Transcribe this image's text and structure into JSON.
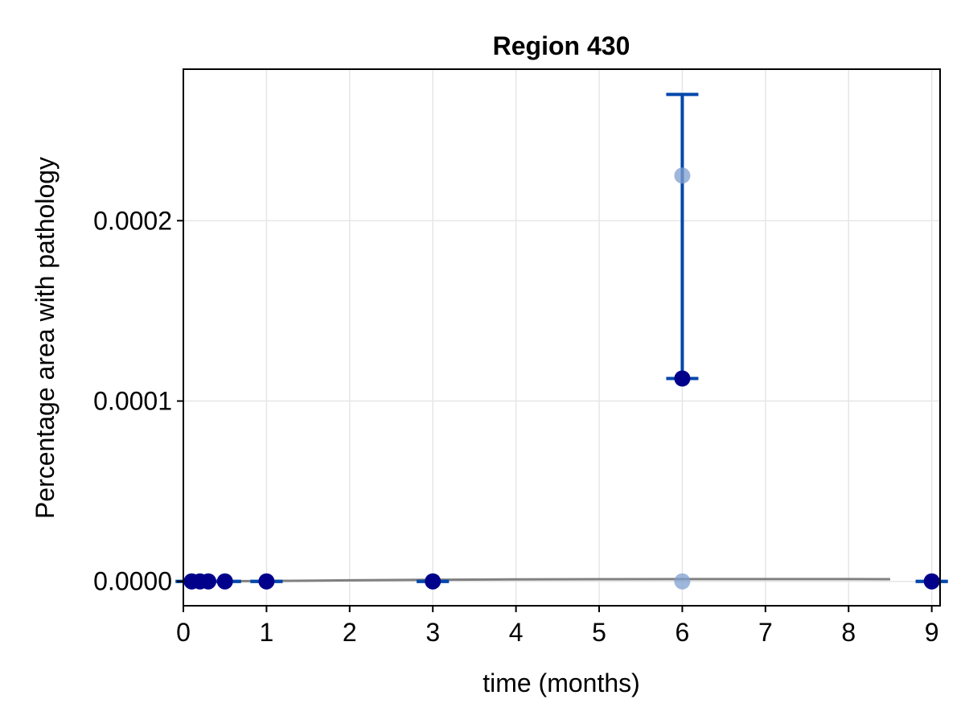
{
  "chart_data": {
    "type": "scatter",
    "title": "Region 430",
    "xlabel": "time (months)",
    "ylabel": "Percentage area with pathology",
    "xlim": [
      0,
      9.1
    ],
    "ylim": [
      -1.35e-05,
      0.000284
    ],
    "x_ticks": [
      0,
      1,
      2,
      3,
      4,
      5,
      6,
      7,
      8,
      9
    ],
    "x_tick_labels": [
      "0",
      "1",
      "2",
      "3",
      "4",
      "5",
      "6",
      "7",
      "8",
      "9"
    ],
    "y_ticks": [
      0,
      0.0001,
      0.0002
    ],
    "y_tick_labels": [
      "0.0000",
      "0.0001",
      "0.0002"
    ],
    "grid": true,
    "legend": "none",
    "colors": {
      "mean_points": "#00008b",
      "individual_points": "#7f9fcf",
      "error_bars": "#0047ab",
      "model_line": "#808080",
      "grid": "#e6e6e6",
      "frame": "#000000"
    },
    "series": [
      {
        "kind": "model_line",
        "x": [
          0.1,
          1,
          2,
          3,
          4,
          5,
          6,
          7,
          8,
          8.5
        ],
        "y": [
          0,
          2e-07,
          6e-07,
          9e-07,
          1.1e-06,
          1.2e-06,
          1.3e-06,
          1.3e-06,
          1.3e-06,
          1.2e-06
        ]
      },
      {
        "kind": "individual_points",
        "x": [
          0.1,
          0.2,
          0.3,
          0.5,
          1,
          3,
          6,
          6,
          9
        ],
        "y": [
          0,
          0,
          0,
          0,
          0,
          0,
          0.000225,
          0,
          0
        ]
      },
      {
        "kind": "mean_points",
        "x": [
          0.1,
          0.2,
          0.3,
          0.5,
          1,
          3,
          6,
          9
        ],
        "y": [
          0,
          0,
          0,
          0,
          0,
          0,
          0.0001125,
          0
        ]
      },
      {
        "kind": "error_bars",
        "x": [
          0.1,
          0.2,
          0.3,
          0.5,
          1,
          3,
          6,
          9
        ],
        "low": [
          0,
          0,
          0,
          0,
          0,
          0,
          0.0001125,
          0
        ],
        "high": [
          0,
          0,
          0,
          0,
          0,
          0,
          0.00027,
          0
        ]
      }
    ]
  }
}
